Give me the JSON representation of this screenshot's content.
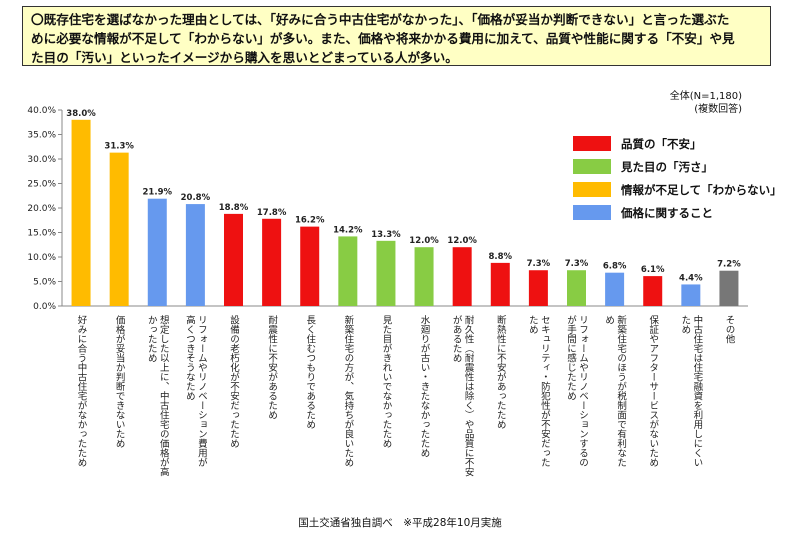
{
  "banner": {
    "line1_a": "〇既存住宅を選ばなかった理由としては、「好みに合う中古住宅がなかった」、「価格が妥当か判断できない」と言った",
    "line1_b": "選ぶた",
    "line2_a": "めに必要な情報が不足して「わからない」",
    "line2_b": "が多い。また、価格や将来かかる費用に加えて、",
    "line2_c": "品質や性能に関する「不安」",
    "line2_d": "や見",
    "line3_a": "た目の「汚い」といったイメージから購入を思いとどまっている人",
    "line3_b": "が多い。"
  },
  "total_label": "全体(N=1,180)",
  "total_note": "(複数回答)",
  "legend": [
    {
      "label": "品質の「不安」",
      "color": "#ee1111"
    },
    {
      "label": "見た目の「汚さ」",
      "color": "#88cc44"
    },
    {
      "label": "情報が不足して「わからない」",
      "color": "#ffbb00"
    },
    {
      "label": "価格に関すること",
      "color": "#6699ee"
    }
  ],
  "footer": "国土交通省独自調べ　※平成28年10月実施",
  "chart_data": {
    "type": "bar",
    "ylim": [
      0,
      40
    ],
    "yticks": [
      "0.0%",
      "5.0%",
      "10.0%",
      "15.0%",
      "20.0%",
      "25.0%",
      "30.0%",
      "35.0%",
      "40.0%"
    ],
    "bars": [
      {
        "label": [
          "好みに合う中古住宅がなかったため"
        ],
        "value": 38.0,
        "value_label": "38.0%",
        "color": "#ffbb00"
      },
      {
        "label": [
          "価格が妥当か判断できないため"
        ],
        "value": 31.3,
        "value_label": "31.3%",
        "color": "#ffbb00"
      },
      {
        "label": [
          "想定した以上に、中古住宅の価格が高",
          "かったため"
        ],
        "value": 21.9,
        "value_label": "21.9%",
        "color": "#6699ee"
      },
      {
        "label": [
          "リフォームやリノベーション費用が",
          "高くつきそうなため"
        ],
        "value": 20.8,
        "value_label": "20.8%",
        "color": "#6699ee"
      },
      {
        "label": [
          "設備の老朽化が不安だったため"
        ],
        "value": 18.8,
        "value_label": "18.8%",
        "color": "#ee1111"
      },
      {
        "label": [
          "耐震性に不安があるため"
        ],
        "value": 17.8,
        "value_label": "17.8%",
        "color": "#ee1111"
      },
      {
        "label": [
          "長く住むつもりであるため"
        ],
        "value": 16.2,
        "value_label": "16.2%",
        "color": "#ee1111"
      },
      {
        "label": [
          "新築住宅の方が、気持ちが良いため"
        ],
        "value": 14.2,
        "value_label": "14.2%",
        "color": "#88cc44"
      },
      {
        "label": [
          "見た目がきれいでなかったため"
        ],
        "value": 13.3,
        "value_label": "13.3%",
        "color": "#88cc44"
      },
      {
        "label": [
          "水廻りが古い・きたなかったため"
        ],
        "value": 12.0,
        "value_label": "12.0%",
        "color": "#88cc44"
      },
      {
        "label": [
          "耐久性（耐震性は除く）や品質に不安",
          "があるため"
        ],
        "value": 12.0,
        "value_label": "12.0%",
        "color": "#ee1111"
      },
      {
        "label": [
          "断熱性に不安があったため"
        ],
        "value": 8.8,
        "value_label": "8.8%",
        "color": "#ee1111"
      },
      {
        "label": [
          "セキュリティ・防犯性が不安だった",
          "ため"
        ],
        "value": 7.3,
        "value_label": "7.3%",
        "color": "#ee1111"
      },
      {
        "label": [
          "リフォームやリノベーションするの",
          "が手間に感じたため"
        ],
        "value": 7.3,
        "value_label": "7.3%",
        "color": "#88cc44"
      },
      {
        "label": [
          "新築住宅のほうが税制面で有利なた",
          "め"
        ],
        "value": 6.8,
        "value_label": "6.8%",
        "color": "#6699ee"
      },
      {
        "label": [
          "保証やアフターサービスがないため"
        ],
        "value": 6.1,
        "value_label": "6.1%",
        "color": "#ee1111"
      },
      {
        "label": [
          "中古住宅は住宅融資を利用しにくい",
          "ため"
        ],
        "value": 4.4,
        "value_label": "4.4%",
        "color": "#6699ee"
      },
      {
        "label": [
          "その他"
        ],
        "value": 7.2,
        "value_label": "7.2%",
        "color": "#777777"
      }
    ]
  }
}
